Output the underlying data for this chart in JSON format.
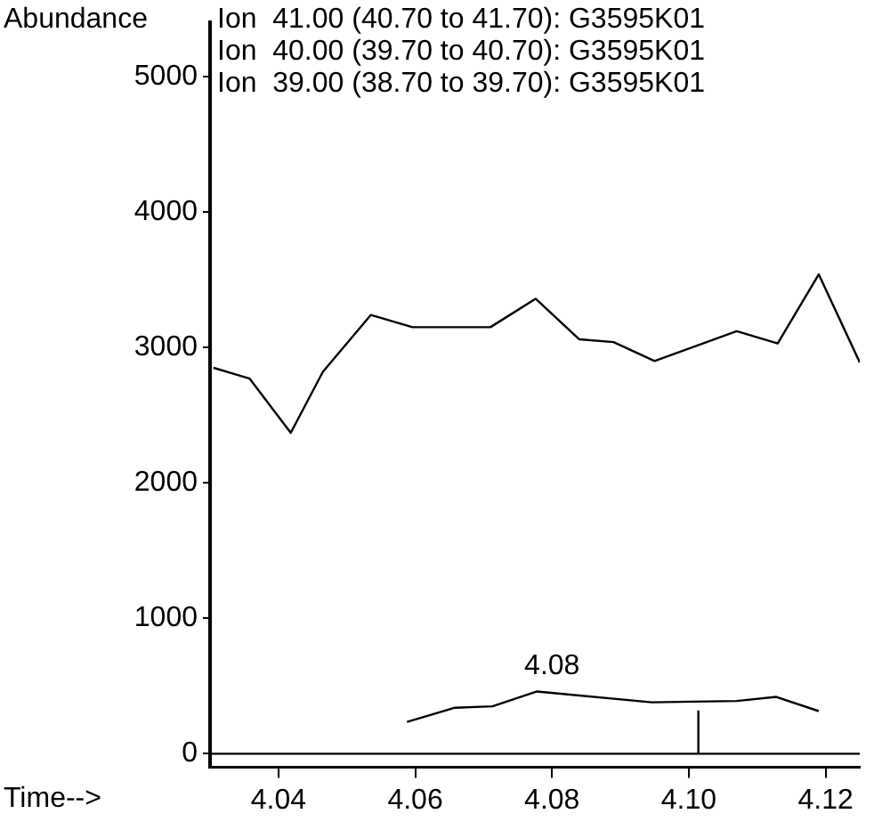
{
  "chart_data": {
    "type": "line",
    "xlabel": "Time-->",
    "ylabel": "Abundance",
    "annotations": [
      "Ion  41.00 (40.70 to 41.70): G3595K01",
      "Ion  40.00 (39.70 to 40.70): G3595K01",
      "Ion  39.00 (38.70 to 39.70): G3595K01",
      {
        "text": "4.08",
        "x": 4.08,
        "y": 460
      }
    ],
    "series": [
      {
        "color": "#000000",
        "x": [
          4.0305,
          4.0358,
          4.0418,
          4.0465,
          4.0535,
          4.0596,
          4.071,
          4.0776,
          4.084,
          4.089,
          4.095,
          4.107,
          4.113,
          4.119,
          4.125
        ],
        "values": [
          2850,
          2770,
          2370,
          2820,
          3240,
          3150,
          3150,
          3360,
          3060,
          3040,
          2900,
          3120,
          3030,
          3540,
          2890
        ]
      },
      {
        "color": "#000000",
        "x": [
          4.0588,
          4.0658,
          4.0713,
          4.0778,
          4.0946,
          4.107,
          4.1128,
          4.119
        ],
        "values": [
          235,
          340,
          350,
          460,
          380,
          390,
          420,
          315
        ]
      },
      {
        "color": "#000000",
        "x": [
          4.1014,
          4.1014
        ],
        "values": [
          0,
          320
        ]
      }
    ],
    "ref_lines": [
      {
        "axis": "y",
        "value": 0,
        "color": "#000000"
      }
    ],
    "xlim": [
      4.03,
      4.125
    ],
    "xticks": [
      {
        "value": 4.04,
        "label": "4.04"
      },
      {
        "value": 4.06,
        "label": "4.06"
      },
      {
        "value": 4.08,
        "label": "4.08"
      },
      {
        "value": 4.1,
        "label": "4.10"
      },
      {
        "value": 4.12,
        "label": "4.12"
      }
    ],
    "ylim": [
      -100,
      5400
    ],
    "yticks": [
      0,
      1000,
      2000,
      3000,
      4000,
      5000
    ],
    "grid": false,
    "legend": false,
    "marker": "none",
    "line_style": "solid"
  }
}
